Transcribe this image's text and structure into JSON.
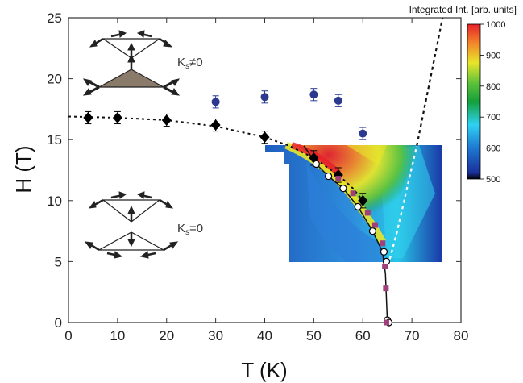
{
  "chart_data": {
    "type": "scatter",
    "title": "",
    "xlabel": "T (K)",
    "ylabel": "H (T)",
    "xlim": [
      0,
      80
    ],
    "ylim": [
      0,
      25
    ],
    "xticks": [
      0,
      10,
      20,
      30,
      40,
      50,
      60,
      70,
      80
    ],
    "yticks": [
      0,
      5,
      10,
      15,
      20,
      25
    ],
    "grid": false,
    "colorbar": {
      "title": "Integrated Int. [arb. units]",
      "range": [
        500,
        1000
      ],
      "ticks": [
        500,
        600,
        700,
        800,
        900,
        1000
      ],
      "ticks_text": [
        "500",
        "600",
        "700",
        "800",
        "900",
        "1000"
      ]
    },
    "annotations": {
      "upper_phase": "K",
      "upper_phase_sub": "s",
      "upper_phase_rel": "≠0",
      "lower_phase": "K",
      "lower_phase_sub": "s",
      "lower_phase_rel": "=0"
    },
    "series": [
      {
        "marker": "diamond",
        "color": "#000000",
        "x": [
          4,
          10,
          20,
          30,
          40,
          50,
          55,
          60
        ],
        "y": [
          16.8,
          16.8,
          16.6,
          16.2,
          15.2,
          13.5,
          12.1,
          10.0
        ],
        "yerr": [
          0.5,
          0.5,
          0.5,
          0.5,
          0.5,
          0.6,
          0.6,
          0.6
        ]
      },
      {
        "marker": "circle",
        "color": "#2b3a8f",
        "x": [
          30,
          40,
          50,
          55,
          60
        ],
        "y": [
          18.1,
          18.5,
          18.7,
          18.2,
          15.5
        ],
        "yerr": [
          0.5,
          0.5,
          0.5,
          0.5,
          0.5
        ]
      },
      {
        "marker": "open-circle",
        "color": "#000000",
        "x": [
          50.5,
          53,
          56,
          59,
          62,
          64.3,
          64.8,
          65,
          65.3
        ],
        "y": [
          13.0,
          12.0,
          11.0,
          9.5,
          7.5,
          5.8,
          5.0,
          0.2,
          0.0
        ]
      },
      {
        "marker": "square",
        "color": "#a0407a",
        "x": [
          55,
          58,
          61,
          62.5,
          64,
          64.5,
          64.7,
          64.8
        ],
        "y": [
          11.8,
          10.6,
          9.0,
          8.0,
          6.5,
          4.6,
          2.8,
          0.0
        ]
      }
    ]
  }
}
